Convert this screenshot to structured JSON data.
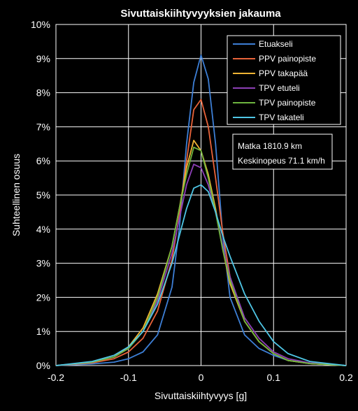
{
  "chart_data": {
    "type": "line",
    "title": "Sivuttaiskiihtyvyyksien jakauma",
    "xlabel": "Sivuttaiskiihtyvyys [g]",
    "ylabel": "Suhteellinen osuus",
    "xlim": [
      -0.2,
      0.2
    ],
    "ylim": [
      0,
      10
    ],
    "x_ticks": [
      "-0.2",
      "-0.1",
      "0",
      "0.1",
      "0.2"
    ],
    "y_ticks": [
      "0%",
      "1%",
      "2%",
      "3%",
      "4%",
      "5%",
      "6%",
      "7%",
      "8%",
      "9%",
      "10%"
    ],
    "grid": true,
    "legend_position": "top-right",
    "info_box": [
      "Matka 1810.9 km",
      "Keskinopeus 71.1 km/h"
    ],
    "series": [
      {
        "name": "Etuakseli",
        "color": "#3d7fd6",
        "x": [
          -0.2,
          -0.15,
          -0.12,
          -0.1,
          -0.08,
          -0.06,
          -0.04,
          -0.03,
          -0.02,
          -0.01,
          0,
          0.01,
          0.02,
          0.03,
          0.04,
          0.06,
          0.08,
          0.1,
          0.12,
          0.15,
          0.2
        ],
        "y": [
          0,
          0.05,
          0.1,
          0.2,
          0.4,
          0.9,
          2.3,
          4.0,
          6.5,
          8.3,
          9.1,
          8.4,
          6.5,
          3.8,
          2.0,
          0.9,
          0.5,
          0.3,
          0.15,
          0.07,
          0
        ]
      },
      {
        "name": "PPV painopiste",
        "color": "#e8633a",
        "x": [
          -0.2,
          -0.15,
          -0.12,
          -0.1,
          -0.08,
          -0.06,
          -0.04,
          -0.03,
          -0.02,
          -0.01,
          0,
          0.01,
          0.02,
          0.03,
          0.04,
          0.06,
          0.08,
          0.1,
          0.12,
          0.15,
          0.2
        ],
        "y": [
          0,
          0.08,
          0.2,
          0.4,
          0.8,
          1.6,
          3.1,
          4.4,
          6.0,
          7.5,
          7.8,
          7.0,
          5.5,
          3.9,
          2.6,
          1.3,
          0.7,
          0.35,
          0.15,
          0.06,
          0
        ]
      },
      {
        "name": "PPV takapää",
        "color": "#efb434",
        "x": [
          -0.2,
          -0.15,
          -0.12,
          -0.1,
          -0.08,
          -0.06,
          -0.04,
          -0.03,
          -0.02,
          -0.01,
          0,
          0.01,
          0.02,
          0.03,
          0.04,
          0.06,
          0.08,
          0.1,
          0.12,
          0.15,
          0.2
        ],
        "y": [
          0,
          0.1,
          0.25,
          0.55,
          1.1,
          2.1,
          3.5,
          4.6,
          5.8,
          6.6,
          6.3,
          5.6,
          4.6,
          3.4,
          2.4,
          1.3,
          0.7,
          0.35,
          0.15,
          0.06,
          0
        ]
      },
      {
        "name": "TPV etuteli",
        "color": "#8c3fb6",
        "x": [
          -0.2,
          -0.15,
          -0.12,
          -0.1,
          -0.08,
          -0.06,
          -0.04,
          -0.03,
          -0.02,
          -0.01,
          0,
          0.01,
          0.02,
          0.03,
          0.04,
          0.06,
          0.08,
          0.1,
          0.12,
          0.15,
          0.2
        ],
        "y": [
          0,
          0.1,
          0.25,
          0.5,
          1.0,
          1.9,
          3.3,
          4.3,
          5.3,
          5.9,
          5.8,
          5.3,
          4.5,
          3.5,
          2.6,
          1.4,
          0.8,
          0.4,
          0.2,
          0.08,
          0
        ]
      },
      {
        "name": "TPV painopiste",
        "color": "#6eb53f",
        "x": [
          -0.2,
          -0.15,
          -0.12,
          -0.1,
          -0.08,
          -0.06,
          -0.04,
          -0.03,
          -0.02,
          -0.01,
          0,
          0.01,
          0.02,
          0.03,
          0.04,
          0.06,
          0.08,
          0.1,
          0.12,
          0.15,
          0.2
        ],
        "y": [
          0,
          0.1,
          0.25,
          0.5,
          1.0,
          2.0,
          3.5,
          4.6,
          5.6,
          6.4,
          6.3,
          5.5,
          4.5,
          3.4,
          2.5,
          1.3,
          0.7,
          0.35,
          0.15,
          0.06,
          0
        ]
      },
      {
        "name": "TPV takateli",
        "color": "#4fc6e6",
        "x": [
          -0.2,
          -0.15,
          -0.12,
          -0.1,
          -0.08,
          -0.06,
          -0.04,
          -0.03,
          -0.02,
          -0.01,
          0,
          0.01,
          0.02,
          0.03,
          0.04,
          0.06,
          0.08,
          0.1,
          0.12,
          0.15,
          0.2
        ],
        "y": [
          0,
          0.12,
          0.3,
          0.55,
          1.0,
          1.8,
          3.0,
          3.8,
          4.6,
          5.2,
          5.3,
          5.1,
          4.5,
          3.8,
          3.2,
          2.1,
          1.3,
          0.7,
          0.35,
          0.12,
          0
        ]
      }
    ]
  }
}
